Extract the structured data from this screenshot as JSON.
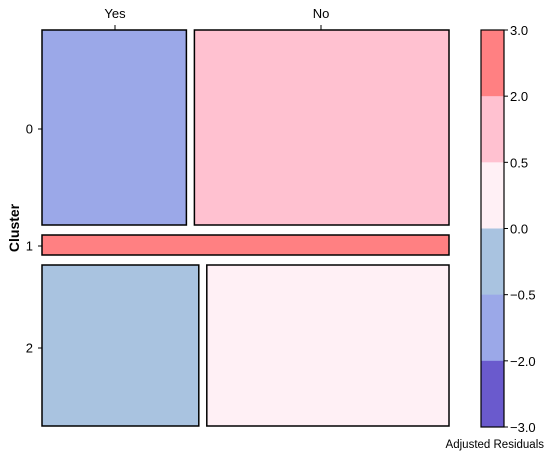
{
  "chart_data": {
    "type": "mosaic",
    "ylabel": "Cluster",
    "column_labels": [
      "Yes",
      "No"
    ],
    "row_labels": [
      "0",
      "1",
      "2"
    ],
    "row_proportions": [
      0.46,
      0.05,
      0.49
    ],
    "cells": [
      {
        "row": "0",
        "col": "Yes",
        "col_fraction": 0.362,
        "residual_bin": "-2.0 to -0.5",
        "color": "#9BA8E8"
      },
      {
        "row": "0",
        "col": "No",
        "col_fraction": 0.638,
        "residual_bin": "0.5 to 2.0",
        "color": "#FFC1D0"
      },
      {
        "row": "1",
        "col": "Yes",
        "col_fraction": 0.0,
        "residual_bin": "2.0 to 3.0",
        "color": "#FF8082"
      },
      {
        "row": "1",
        "col": "No",
        "col_fraction": 1.0,
        "residual_bin": "2.0 to 3.0",
        "color": "#FF8082"
      },
      {
        "row": "2",
        "col": "Yes",
        "col_fraction": 0.393,
        "residual_bin": "-0.5 to 0.0",
        "color": "#A9C3E0"
      },
      {
        "row": "2",
        "col": "No",
        "col_fraction": 0.607,
        "residual_bin": "0.0 to 0.5",
        "color": "#FFF0F5"
      }
    ],
    "legend": {
      "title": "Adjusted Residuals",
      "ticks": [
        "3.0",
        "2.0",
        "0.5",
        "0.0",
        "−0.5",
        "−2.0",
        "−3.0"
      ],
      "bins": [
        {
          "range": "2.0 to 3.0",
          "color": "#FF8082"
        },
        {
          "range": "0.5 to 2.0",
          "color": "#FFC1D0"
        },
        {
          "range": "0.0 to 0.5",
          "color": "#FFF0F5"
        },
        {
          "range": "-0.5 to 0.0",
          "color": "#A9C3E0"
        },
        {
          "range": "-2.0 to -0.5",
          "color": "#9BA8E8"
        },
        {
          "range": "-3.0 to -2.0",
          "color": "#6A5ACD"
        }
      ],
      "placement": "right"
    }
  }
}
